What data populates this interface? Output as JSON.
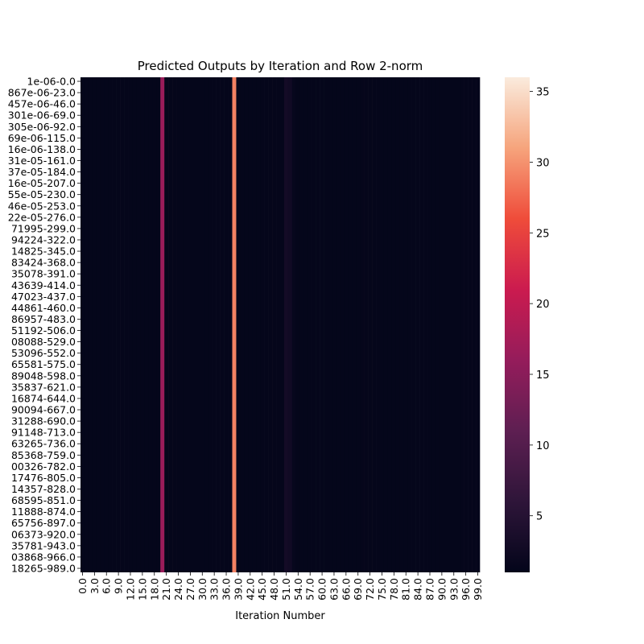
{
  "chart_data": {
    "type": "heatmap",
    "title": "Predicted Outputs by Iteration and Row 2-norm",
    "xlabel": "Iteration Number",
    "ylabel": "",
    "y_tick_labels": [
      "1e-06-0.0",
      "867e-06-23.0",
      "457e-06-46.0",
      "301e-06-69.0",
      "305e-06-92.0",
      "69e-06-115.0",
      "16e-06-138.0",
      "31e-05-161.0",
      "37e-05-184.0",
      "16e-05-207.0",
      "55e-05-230.0",
      "46e-05-253.0",
      "22e-05-276.0",
      "71995-299.0",
      "94224-322.0",
      "14825-345.0",
      "83424-368.0",
      "35078-391.0",
      "43639-414.0",
      "47023-437.0",
      "44861-460.0",
      "86957-483.0",
      "51192-506.0",
      "08088-529.0",
      "53096-552.0",
      "65581-575.0",
      "89048-598.0",
      "35837-621.0",
      "16874-644.0",
      "90094-667.0",
      "31288-690.0",
      "91148-713.0",
      "63265-736.0",
      "85368-759.0",
      "00326-782.0",
      "17476-805.0",
      "14357-828.0",
      "68595-851.0",
      "11888-874.0",
      "65756-897.0",
      "06373-920.0",
      "35781-943.0",
      "03868-966.0",
      "18265-989.0"
    ],
    "x_tick_labels": [
      "0.0",
      "3.0",
      "6.0",
      "9.0",
      "12.0",
      "15.0",
      "18.0",
      "21.0",
      "24.0",
      "27.0",
      "30.0",
      "33.0",
      "36.0",
      "39.0",
      "42.0",
      "45.0",
      "48.0",
      "51.0",
      "54.0",
      "57.0",
      "60.0",
      "63.0",
      "66.0",
      "69.0",
      "72.0",
      "75.0",
      "78.0",
      "81.0",
      "84.0",
      "87.0",
      "90.0",
      "93.0",
      "96.0",
      "99.0"
    ],
    "n_columns": 100,
    "baseline_value": 1.2,
    "column_values": [
      {
        "iteration": 20,
        "value": 16.5
      },
      {
        "iteration": 38,
        "value": 29.0
      },
      {
        "iteration": 51,
        "value": 3.0
      },
      {
        "iteration": 52,
        "value": 2.6
      },
      {
        "iteration": 53,
        "value": 1.5
      }
    ],
    "colorbar": {
      "min": 1.0,
      "max": 36.0,
      "ticks": [
        5,
        10,
        15,
        20,
        25,
        30,
        35
      ],
      "colormap": "rocket",
      "stops": [
        "#03051a",
        "#2e1539",
        "#5e1f52",
        "#951c5b",
        "#cb1b4f",
        "#ef4c3a",
        "#f6a47c",
        "#faebdd"
      ]
    },
    "grid": false,
    "legend": "colorbar-right"
  }
}
